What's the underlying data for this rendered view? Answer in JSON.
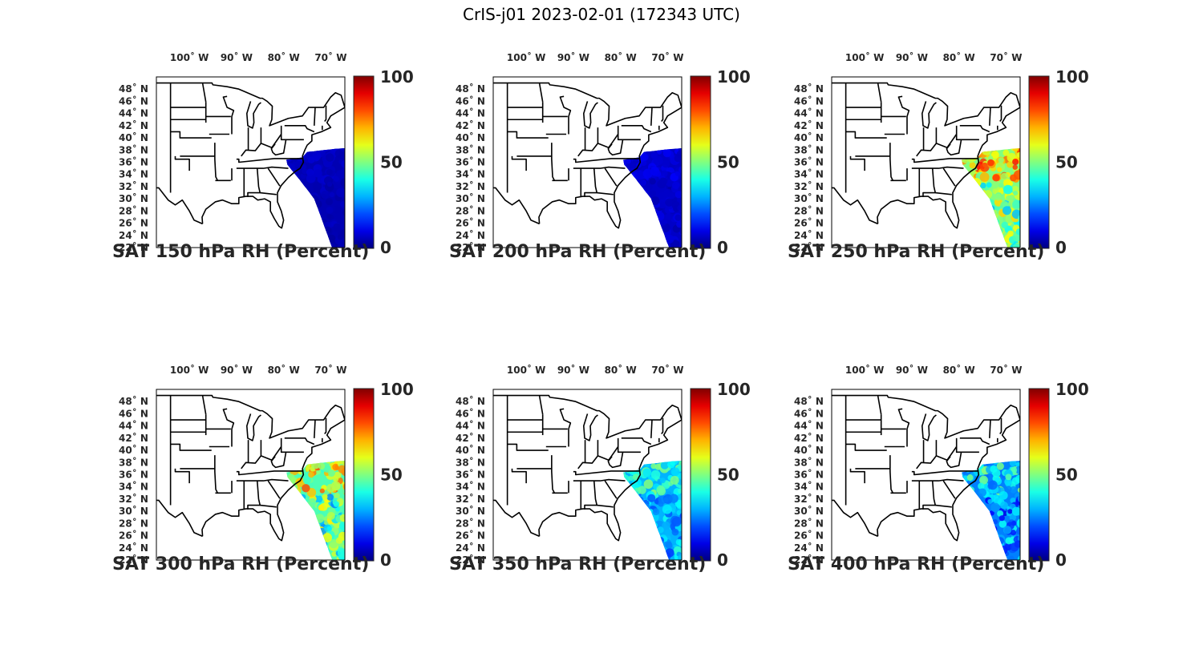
{
  "title": "CrIS-j01 2023-02-01 (172343 UTC)",
  "lon_ticks": [
    {
      "deg": "100",
      "hem": "W"
    },
    {
      "deg": "90",
      "hem": "W"
    },
    {
      "deg": "80",
      "hem": "W"
    },
    {
      "deg": "70",
      "hem": "W"
    }
  ],
  "lat_ticks": [
    {
      "deg": "48",
      "hem": "N"
    },
    {
      "deg": "46",
      "hem": "N"
    },
    {
      "deg": "44",
      "hem": "N"
    },
    {
      "deg": "42",
      "hem": "N"
    },
    {
      "deg": "40",
      "hem": "N"
    },
    {
      "deg": "38",
      "hem": "N"
    },
    {
      "deg": "36",
      "hem": "N"
    },
    {
      "deg": "34",
      "hem": "N"
    },
    {
      "deg": "32",
      "hem": "N"
    },
    {
      "deg": "30",
      "hem": "N"
    },
    {
      "deg": "28",
      "hem": "N"
    },
    {
      "deg": "26",
      "hem": "N"
    },
    {
      "deg": "24",
      "hem": "N"
    },
    {
      "deg": "22",
      "hem": "N"
    }
  ],
  "colorbar": {
    "labels": [
      "100",
      "50",
      "0"
    ],
    "colormap": "jet",
    "range": [
      0,
      100
    ]
  },
  "colors": {
    "low": "#00008f",
    "mid": "#7fff7f",
    "high": "#800000",
    "coast": "#000000"
  },
  "panels": [
    {
      "title": "SAT 150 hPa RH (Percent)",
      "mean_rh": 5,
      "variability": 2
    },
    {
      "title": "SAT 200 hPa RH (Percent)",
      "mean_rh": 7,
      "variability": 3
    },
    {
      "title": "SAT 250 hPa RH (Percent)",
      "mean_rh": 50,
      "variability": 20
    },
    {
      "title": "SAT 300 hPa RH (Percent)",
      "mean_rh": 45,
      "variability": 20
    },
    {
      "title": "SAT 350 hPa RH (Percent)",
      "mean_rh": 30,
      "variability": 12
    },
    {
      "title": "SAT 400 hPa RH (Percent)",
      "mean_rh": 25,
      "variability": 15
    }
  ]
}
